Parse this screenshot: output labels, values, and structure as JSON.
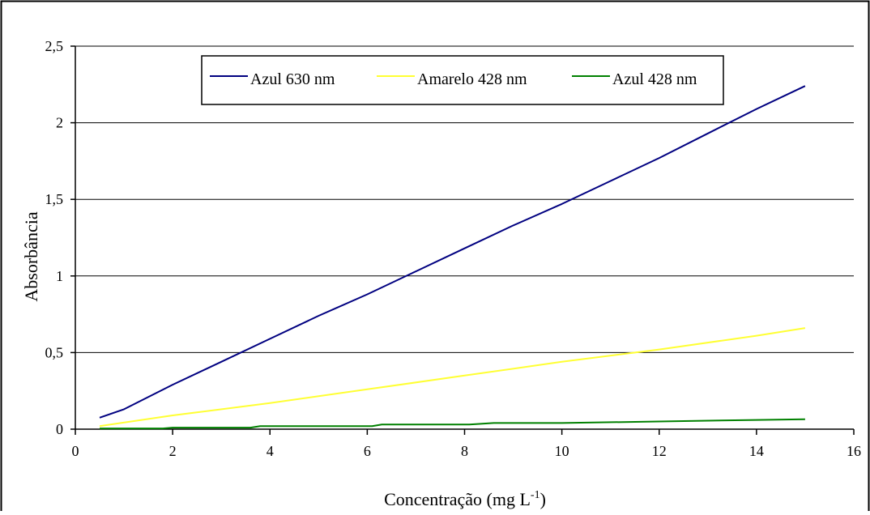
{
  "chart_data": {
    "type": "line",
    "title": "",
    "xlabel": "Concentração (mg L",
    "xlabel_superscript": "-1",
    "xlabel_suffix": ")",
    "ylabel": "Absorbância",
    "xlim": [
      0,
      16
    ],
    "ylim": [
      0,
      2.5
    ],
    "x_ticks": [
      0,
      2,
      4,
      6,
      8,
      10,
      12,
      14,
      16
    ],
    "x_tick_labels": [
      "0",
      "2",
      "4",
      "6",
      "8",
      "10",
      "12",
      "14",
      "16"
    ],
    "y_ticks": [
      0,
      0.5,
      1,
      1.5,
      2,
      2.5
    ],
    "y_tick_labels": [
      "0",
      "0,5",
      "1",
      "1,5",
      "2",
      "2,5"
    ],
    "grid": "horizontal",
    "legend_position": "top-center",
    "series": [
      {
        "name": "Azul 630 nm",
        "color": "#000080",
        "points": [
          [
            0.5,
            0.075
          ],
          [
            1,
            0.13
          ],
          [
            2,
            0.29
          ],
          [
            3,
            0.44
          ],
          [
            4,
            0.59
          ],
          [
            5,
            0.74
          ],
          [
            6,
            0.88
          ],
          [
            7,
            1.03
          ],
          [
            8,
            1.18
          ],
          [
            9,
            1.33
          ],
          [
            10,
            1.47
          ],
          [
            11,
            1.62
          ],
          [
            12,
            1.77
          ],
          [
            13,
            1.93
          ],
          [
            14,
            2.09
          ],
          [
            15,
            2.24
          ]
        ]
      },
      {
        "name": "Amarelo 428 nm",
        "color": "#FFFF33",
        "points": [
          [
            0.5,
            0.02
          ],
          [
            2,
            0.09
          ],
          [
            4,
            0.17
          ],
          [
            6,
            0.26
          ],
          [
            8,
            0.35
          ],
          [
            10,
            0.44
          ],
          [
            12,
            0.52
          ],
          [
            14,
            0.61
          ],
          [
            15,
            0.66
          ]
        ]
      },
      {
        "name": "Azul 428 nm",
        "color": "#008000",
        "points": [
          [
            0.5,
            0.005
          ],
          [
            1.8,
            0.005
          ],
          [
            2,
            0.01
          ],
          [
            3.6,
            0.01
          ],
          [
            3.8,
            0.02
          ],
          [
            6.1,
            0.02
          ],
          [
            6.3,
            0.03
          ],
          [
            8.1,
            0.03
          ],
          [
            8.6,
            0.04
          ],
          [
            10,
            0.04
          ],
          [
            12,
            0.05
          ],
          [
            14,
            0.06
          ],
          [
            15,
            0.065
          ]
        ]
      }
    ]
  }
}
